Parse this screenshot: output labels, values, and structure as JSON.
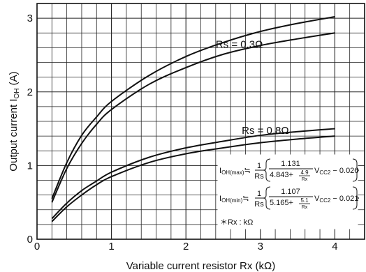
{
  "chart_data": {
    "type": "line",
    "xlabel": "Variable current resistor Rx (kΩ)",
    "ylabel_main": "Output current I",
    "ylabel_sub": "OH",
    "ylabel_unit": " (A)",
    "xlim": [
      0,
      4.4
    ],
    "ylim": [
      0,
      3.2
    ],
    "x_ticks": [
      {
        "value": 0,
        "label": "0"
      },
      {
        "value": 1,
        "label": "1"
      },
      {
        "value": 2,
        "label": "2"
      },
      {
        "value": 3,
        "label": "3"
      },
      {
        "value": 4,
        "label": "4"
      }
    ],
    "y_ticks": [
      {
        "value": 0,
        "label": "0"
      },
      {
        "value": 1,
        "label": "1"
      },
      {
        "value": 2,
        "label": "2"
      },
      {
        "value": 3,
        "label": "3"
      }
    ],
    "grid": true,
    "x_minor_step": 0.2,
    "y_minor_step": 0.2,
    "series": [
      {
        "group": "Rs = 0.3Ω",
        "curve": "max",
        "x": [
          0.2,
          0.4,
          0.6,
          0.8,
          1.0,
          1.5,
          2.0,
          2.5,
          3.0,
          3.5,
          4.0
        ],
        "y": [
          0.55,
          1.04,
          1.41,
          1.66,
          1.87,
          2.22,
          2.48,
          2.67,
          2.82,
          2.93,
          3.02
        ]
      },
      {
        "group": "Rs = 0.3Ω",
        "curve": "min",
        "x": [
          0.2,
          0.4,
          0.6,
          0.8,
          1.0,
          1.5,
          2.0,
          2.5,
          3.0,
          3.5,
          4.0
        ],
        "y": [
          0.5,
          0.96,
          1.3,
          1.56,
          1.76,
          2.1,
          2.33,
          2.51,
          2.63,
          2.72,
          2.8
        ]
      },
      {
        "group": "Rs = 0.8Ω",
        "curve": "max",
        "x": [
          0.2,
          0.4,
          0.6,
          0.8,
          1.0,
          1.5,
          2.0,
          2.5,
          3.0,
          3.5,
          4.0
        ],
        "y": [
          0.28,
          0.49,
          0.66,
          0.79,
          0.91,
          1.11,
          1.24,
          1.33,
          1.41,
          1.46,
          1.5
        ]
      },
      {
        "group": "Rs = 0.8Ω",
        "curve": "min",
        "x": [
          0.2,
          0.4,
          0.6,
          0.8,
          1.0,
          1.5,
          2.0,
          2.5,
          3.0,
          3.5,
          4.0
        ],
        "y": [
          0.24,
          0.44,
          0.6,
          0.74,
          0.85,
          1.04,
          1.16,
          1.24,
          1.31,
          1.36,
          1.4
        ]
      }
    ],
    "annotations": [
      {
        "text": "Rs = 0.3Ω",
        "x": 2.4,
        "y": 2.6
      },
      {
        "text": "Rs = 0.8Ω",
        "x": 2.75,
        "y": 1.43
      }
    ],
    "formula_box": {
      "max_prefix": "I",
      "max_sub": "OH(max)",
      "min_prefix": "I",
      "min_sub": "OH(min)",
      "approx": "≒",
      "one": "1",
      "rs": "Rs",
      "max_numerator": "1.131",
      "max_den_const": "4.843+",
      "max_den_frac_num": "4.9",
      "max_den_frac_den": "Rx",
      "max_tail": "V",
      "max_tail_sub": "CC2",
      "max_tail_const": " − 0.026",
      "min_numerator": "1.107",
      "min_den_const": "5.165+",
      "min_den_frac_num": "5.1",
      "min_den_frac_den": "Rx",
      "min_tail": "V",
      "min_tail_sub": "CC2",
      "min_tail_const": " − 0.021",
      "note": "＊Rx : kΩ"
    }
  }
}
